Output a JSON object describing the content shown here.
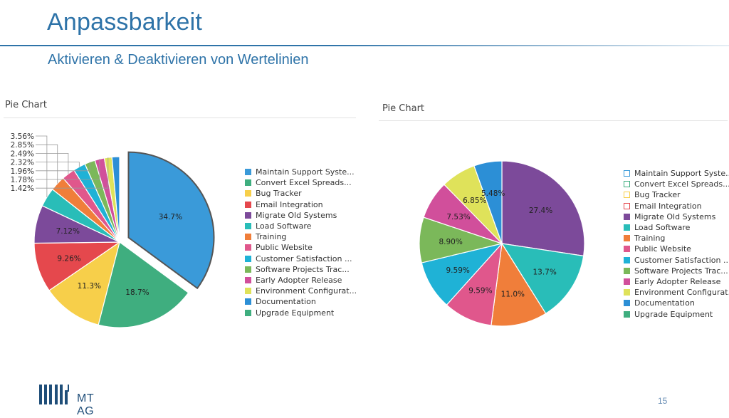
{
  "slide": {
    "title": "Anpassbarkeit",
    "subtitle": "Aktivieren & Deaktivieren von Wertelinien",
    "page_number": "15",
    "logo_text": "MT AG",
    "accent_color": "#2e73a8"
  },
  "chart_data": [
    {
      "type": "pie",
      "title": "Pie Chart",
      "exploded_slice": "Maintain Support Syste...",
      "legend_position": "right",
      "series": [
        {
          "name": "Maintain Support Syste...",
          "value": 34.7,
          "label": "34.7%",
          "color": "#3a9ad9",
          "enabled": true
        },
        {
          "name": "Convert Excel Spreads...",
          "value": 18.7,
          "label": "18.7%",
          "color": "#3fae7f",
          "enabled": true
        },
        {
          "name": "Bug Tracker",
          "value": 11.3,
          "label": "11.3%",
          "color": "#f7cf4a",
          "enabled": true
        },
        {
          "name": "Email Integration",
          "value": 9.26,
          "label": "9.26%",
          "color": "#e5484d",
          "enabled": true
        },
        {
          "name": "Migrate Old Systems",
          "value": 7.12,
          "label": "7.12%",
          "color": "#7c4a9a",
          "enabled": true
        },
        {
          "name": "Load Software",
          "value": 3.56,
          "label": "3.56%",
          "color": "#29bdb8",
          "enabled": true
        },
        {
          "name": "Training",
          "value": 2.85,
          "label": "2.85%",
          "color": "#f07e3a",
          "enabled": true
        },
        {
          "name": "Public Website",
          "value": 2.49,
          "label": "2.49%",
          "color": "#e0578c",
          "enabled": true
        },
        {
          "name": "Customer Satisfaction ...",
          "value": 2.32,
          "label": "2.32%",
          "color": "#1fb2d6",
          "enabled": true
        },
        {
          "name": "Software Projects Trac...",
          "value": 1.96,
          "label": "1.96%",
          "color": "#7bb85a",
          "enabled": true
        },
        {
          "name": "Early Adopter Release",
          "value": 1.78,
          "label": "1.78%",
          "color": "#d14f9b",
          "enabled": true
        },
        {
          "name": "Environment Configurat...",
          "value": 1.42,
          "label": "1.42%",
          "color": "#dfe25a",
          "enabled": true
        },
        {
          "name": "Documentation",
          "value": 1.42,
          "label": "",
          "color": "#2c8fd6",
          "enabled": true
        },
        {
          "name": "Upgrade Equipment",
          "value": 0,
          "label": "",
          "color": "#3fae7f",
          "enabled": true
        }
      ]
    },
    {
      "type": "pie",
      "title": "Pie Chart",
      "legend_position": "right",
      "series": [
        {
          "name": "Maintain Support Syste...",
          "value": 0,
          "label": "",
          "color": "#3a9ad9",
          "enabled": false
        },
        {
          "name": "Convert Excel Spreads...",
          "value": 0,
          "label": "",
          "color": "#3fae7f",
          "enabled": false
        },
        {
          "name": "Bug Tracker",
          "value": 0,
          "label": "",
          "color": "#f7cf4a",
          "enabled": false
        },
        {
          "name": "Email Integration",
          "value": 0,
          "label": "",
          "color": "#e5484d",
          "enabled": false
        },
        {
          "name": "Migrate Old Systems",
          "value": 27.4,
          "label": "27.4%",
          "color": "#7c4a9a",
          "enabled": true
        },
        {
          "name": "Load Software",
          "value": 13.7,
          "label": "13.7%",
          "color": "#29bdb8",
          "enabled": true
        },
        {
          "name": "Training",
          "value": 11.0,
          "label": "11.0%",
          "color": "#f07e3a",
          "enabled": true
        },
        {
          "name": "Public Website",
          "value": 9.59,
          "label": "9.59%",
          "color": "#e0578c",
          "enabled": true
        },
        {
          "name": "Customer Satisfaction ...",
          "value": 9.59,
          "label": "9.59%",
          "color": "#1fb2d6",
          "enabled": true
        },
        {
          "name": "Software Projects Trac...",
          "value": 8.9,
          "label": "8.90%",
          "color": "#7bb85a",
          "enabled": true
        },
        {
          "name": "Early Adopter Release",
          "value": 7.53,
          "label": "7.53%",
          "color": "#d14f9b",
          "enabled": true
        },
        {
          "name": "Environment Configurat...",
          "value": 6.85,
          "label": "6.85%",
          "color": "#dfe25a",
          "enabled": true
        },
        {
          "name": "Documentation",
          "value": 5.48,
          "label": "5.48%",
          "color": "#2c8fd6",
          "enabled": true
        },
        {
          "name": "Upgrade Equipment",
          "value": 0,
          "label": "",
          "color": "#3fae7f",
          "enabled": true
        }
      ]
    }
  ]
}
